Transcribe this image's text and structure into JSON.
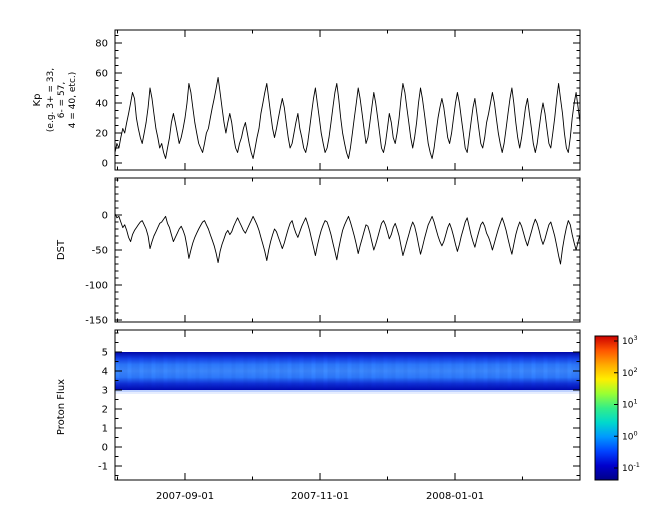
{
  "figure": {
    "background": "#ffffff"
  },
  "chart_data": {
    "type": "line",
    "description": "Three stacked time-series panels (Kp index, DST index, Proton Flux spectrogram) sharing a common date axis, with a log-scale colorbar for the spectrogram.",
    "x_axis": {
      "tick_labels": [
        "2007-09-01",
        "2007-11-01",
        "2008-01-01"
      ]
    },
    "panels": [
      {
        "id": "kp",
        "type": "line",
        "ylabel_lines": [
          "Kp",
          "(e.g. 3+ = 33,",
          "6- = 57,",
          "4 = 40, etc.)"
        ],
        "yticks": [
          0,
          20,
          40,
          60,
          80
        ],
        "ylim": [
          -5,
          88
        ],
        "line_color": "#000000",
        "values": [
          7,
          13,
          10,
          17,
          23,
          20,
          27,
          33,
          40,
          47,
          43,
          30,
          23,
          17,
          13,
          20,
          27,
          37,
          50,
          43,
          33,
          23,
          17,
          10,
          13,
          7,
          3,
          10,
          17,
          27,
          33,
          27,
          20,
          13,
          17,
          23,
          30,
          40,
          53,
          47,
          37,
          27,
          20,
          13,
          10,
          7,
          13,
          20,
          23,
          30,
          37,
          43,
          50,
          57,
          47,
          37,
          27,
          20,
          27,
          33,
          27,
          17,
          10,
          7,
          13,
          17,
          23,
          27,
          20,
          13,
          7,
          3,
          10,
          17,
          23,
          33,
          40,
          47,
          53,
          43,
          33,
          23,
          17,
          23,
          30,
          37,
          43,
          37,
          27,
          17,
          10,
          13,
          20,
          27,
          33,
          23,
          17,
          10,
          7,
          13,
          23,
          33,
          43,
          50,
          40,
          30,
          20,
          13,
          7,
          10,
          17,
          27,
          37,
          47,
          53,
          43,
          30,
          20,
          13,
          7,
          3,
          10,
          20,
          30,
          40,
          50,
          43,
          33,
          23,
          13,
          17,
          27,
          37,
          47,
          40,
          30,
          20,
          10,
          7,
          13,
          23,
          33,
          27,
          17,
          13,
          20,
          30,
          43,
          53,
          47,
          37,
          27,
          17,
          10,
          17,
          27,
          40,
          50,
          43,
          33,
          23,
          13,
          7,
          3,
          10,
          20,
          30,
          37,
          43,
          37,
          27,
          17,
          13,
          20,
          30,
          40,
          47,
          40,
          30,
          20,
          10,
          7,
          17,
          27,
          37,
          43,
          33,
          23,
          13,
          10,
          17,
          27,
          33,
          40,
          47,
          40,
          30,
          20,
          13,
          7,
          13,
          23,
          33,
          43,
          50,
          40,
          27,
          17,
          10,
          17,
          27,
          37,
          43,
          33,
          23,
          13,
          7,
          13,
          23,
          33,
          40,
          33,
          23,
          13,
          10,
          20,
          30,
          43,
          53,
          43,
          33,
          20,
          10,
          7,
          17,
          30,
          40,
          47,
          37,
          27
        ]
      },
      {
        "id": "dst",
        "type": "line",
        "ylabel": "DST",
        "yticks": [
          0,
          -50,
          -100,
          -150
        ],
        "ylim": [
          -153,
          53
        ],
        "line_color": "#000000",
        "values": [
          2,
          -4,
          -2,
          -10,
          -18,
          -14,
          -22,
          -32,
          -38,
          -28,
          -22,
          -18,
          -14,
          -10,
          -8,
          -14,
          -20,
          -30,
          -48,
          -38,
          -30,
          -24,
          -18,
          -12,
          -10,
          -6,
          -2,
          -12,
          -18,
          -28,
          -38,
          -32,
          -26,
          -20,
          -16,
          -22,
          -30,
          -45,
          -62,
          -50,
          -40,
          -32,
          -26,
          -20,
          -15,
          -10,
          -8,
          -14,
          -20,
          -28,
          -36,
          -44,
          -55,
          -68,
          -52,
          -42,
          -34,
          -26,
          -22,
          -28,
          -24,
          -16,
          -10,
          -4,
          -10,
          -16,
          -22,
          -26,
          -20,
          -14,
          -8,
          -2,
          -8,
          -14,
          -22,
          -32,
          -42,
          -52,
          -65,
          -50,
          -38,
          -28,
          -20,
          -24,
          -32,
          -40,
          -48,
          -40,
          -30,
          -20,
          -12,
          -8,
          -18,
          -26,
          -32,
          -24,
          -16,
          -10,
          -4,
          -12,
          -22,
          -34,
          -46,
          -58,
          -44,
          -32,
          -22,
          -14,
          -8,
          -10,
          -18,
          -28,
          -40,
          -52,
          -64,
          -48,
          -34,
          -22,
          -14,
          -8,
          -2,
          -10,
          -20,
          -30,
          -42,
          -55,
          -44,
          -34,
          -24,
          -14,
          -16,
          -26,
          -38,
          -50,
          -42,
          -32,
          -22,
          -12,
          -8,
          -14,
          -24,
          -34,
          -28,
          -18,
          -12,
          -20,
          -30,
          -44,
          -58,
          -48,
          -38,
          -28,
          -18,
          -10,
          -16,
          -28,
          -42,
          -56,
          -46,
          -34,
          -24,
          -14,
          -8,
          -2,
          -10,
          -20,
          -30,
          -38,
          -44,
          -38,
          -28,
          -18,
          -12,
          -20,
          -30,
          -42,
          -52,
          -42,
          -30,
          -20,
          -10,
          -4,
          -16,
          -28,
          -38,
          -46,
          -34,
          -24,
          -14,
          -10,
          -16,
          -26,
          -32,
          -40,
          -50,
          -40,
          -30,
          -20,
          -12,
          -4,
          -12,
          -22,
          -34,
          -46,
          -56,
          -42,
          -28,
          -18,
          -10,
          -16,
          -26,
          -36,
          -44,
          -34,
          -24,
          -14,
          -6,
          -12,
          -22,
          -34,
          -42,
          -34,
          -24,
          -14,
          -10,
          -20,
          -30,
          -44,
          -58,
          -70,
          -48,
          -32,
          -18,
          -8,
          -14,
          -28,
          -40,
          -50,
          -38,
          -28
        ]
      },
      {
        "id": "proton_flux",
        "type": "heatmap",
        "ylabel": "Proton Flux",
        "yticks": [
          -1,
          0,
          1,
          2,
          3,
          4,
          5
        ],
        "ylim": [
          -1.8,
          6.2
        ],
        "band": {
          "y_from": 3.0,
          "y_to": 5.0,
          "gradient": [
            "#0005a8",
            "#1440e8",
            "#2f7dff",
            "#3f8cff",
            "#2f7dff",
            "#1030d8",
            "#0008b0"
          ]
        }
      }
    ],
    "colorbar": {
      "scale": "log",
      "base": "10",
      "tick_exponents": [
        3,
        2,
        1,
        0,
        -1
      ],
      "gradient": [
        "#cc0000",
        "#ff5500",
        "#ffaa00",
        "#ffee00",
        "#99ff33",
        "#33ee88",
        "#00d9cc",
        "#0099ff",
        "#0044ff",
        "#0000cc",
        "#000088"
      ]
    }
  }
}
